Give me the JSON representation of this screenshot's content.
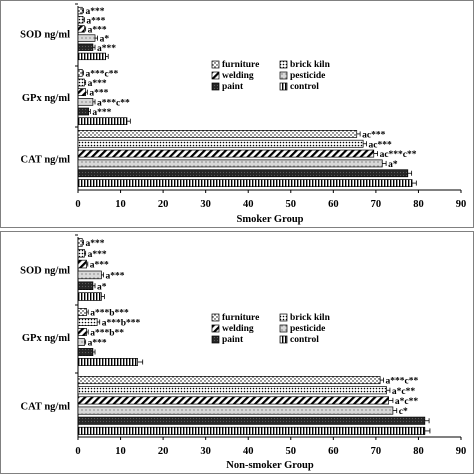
{
  "legend_order": [
    "furniture",
    "brick kiln",
    "welding",
    "pesticide",
    "paint",
    "control"
  ],
  "chart_data": [
    {
      "type": "bar",
      "orientation": "horizontal",
      "xlabel": "Smoker Group",
      "xlim": [
        0,
        90
      ],
      "xticks": [
        0,
        10,
        20,
        30,
        40,
        50,
        60,
        70,
        80,
        90
      ],
      "grid": false,
      "legend_position": "center-right",
      "categories": [
        "CAT ng/ml",
        "GPx ng/ml",
        "SOD ng/ml"
      ],
      "series": [
        {
          "name": "furniture",
          "pattern": "dots",
          "values": [
            65.5,
            1.0,
            1.0
          ],
          "labels": [
            "ac***",
            "a***c**",
            "a***"
          ]
        },
        {
          "name": "brick kiln",
          "pattern": "dense-dots",
          "values": [
            67.0,
            1.5,
            1.2
          ],
          "labels": [
            "ac***",
            "a***",
            "a***"
          ]
        },
        {
          "name": "welding",
          "pattern": "diagonal",
          "values": [
            69.5,
            1.8,
            1.5
          ],
          "labels": [
            "ac***c**",
            "a***",
            "a***"
          ]
        },
        {
          "name": "pesticide",
          "pattern": "dots-light",
          "values": [
            71.5,
            3.5,
            4.0
          ],
          "labels": [
            "a*",
            "a***c**",
            "a*"
          ]
        },
        {
          "name": "paint",
          "pattern": "solid-dark",
          "values": [
            77.5,
            2.5,
            3.5
          ],
          "labels": [
            "",
            "a***",
            "a***"
          ]
        },
        {
          "name": "control",
          "pattern": "vertical",
          "values": [
            78.5,
            11.5,
            6.5
          ],
          "labels": [
            "",
            "",
            ""
          ]
        }
      ],
      "errors": {
        "furniture": [
          0.8,
          0.3,
          0.3
        ],
        "brick kiln": [
          0.8,
          0.3,
          0.3
        ],
        "welding": [
          0.9,
          0.4,
          0.3
        ],
        "pesticide": [
          0.9,
          0.5,
          0.6
        ],
        "paint": [
          0.9,
          0.4,
          0.5
        ],
        "control": [
          1.0,
          0.8,
          0.6
        ]
      }
    },
    {
      "type": "bar",
      "orientation": "horizontal",
      "xlabel": "Non-smoker Group",
      "xlim": [
        0,
        90
      ],
      "xticks": [
        0,
        10,
        20,
        30,
        40,
        50,
        60,
        70,
        80,
        90
      ],
      "grid": false,
      "legend_position": "center-right",
      "categories": [
        "CAT ng/ml",
        "GPx ng/ml",
        "SOD ng/ml"
      ],
      "series": [
        {
          "name": "furniture",
          "pattern": "dots",
          "values": [
            71.0,
            2.0,
            1.0
          ],
          "labels": [
            "a***c**",
            "a***b***",
            "a***"
          ]
        },
        {
          "name": "brick kiln",
          "pattern": "dense-dots",
          "values": [
            72.5,
            4.5,
            1.5
          ],
          "labels": [
            "a*c**",
            "a***b***",
            "a***"
          ]
        },
        {
          "name": "welding",
          "pattern": "diagonal",
          "values": [
            73.0,
            2.0,
            2.0
          ],
          "labels": [
            "a*c**",
            "a***b**",
            "a***"
          ]
        },
        {
          "name": "pesticide",
          "pattern": "dots-light",
          "values": [
            74.0,
            1.5,
            5.5
          ],
          "labels": [
            "c*",
            "a***",
            "a***"
          ]
        },
        {
          "name": "paint",
          "pattern": "solid-dark",
          "values": [
            81.5,
            3.5,
            3.5
          ],
          "labels": [
            "",
            "",
            "a*"
          ]
        },
        {
          "name": "control",
          "pattern": "vertical",
          "values": [
            81.5,
            14.0,
            5.5
          ],
          "labels": [
            "",
            "",
            ""
          ]
        }
      ],
      "errors": {
        "furniture": [
          0.8,
          0.4,
          0.3
        ],
        "brick kiln": [
          0.8,
          0.6,
          0.3
        ],
        "welding": [
          1.0,
          0.4,
          0.3
        ],
        "pesticide": [
          0.9,
          0.3,
          0.5
        ],
        "paint": [
          1.0,
          0.5,
          0.5
        ],
        "control": [
          1.2,
          1.2,
          0.7
        ]
      }
    }
  ]
}
